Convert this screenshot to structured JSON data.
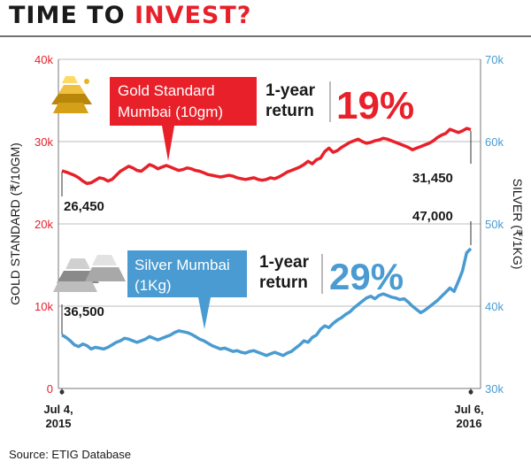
{
  "title": {
    "part1": "TIME TO ",
    "part2": "INVEST?"
  },
  "source": "Source: ETIG Database",
  "colors": {
    "gold": "#e8202a",
    "silver": "#4a9bd1",
    "text": "#1a1a1a",
    "axis": "#777777"
  },
  "icons": {
    "gold": "gold-bars-icon",
    "silver": "silver-bars-icon"
  },
  "chart_data": {
    "type": "line",
    "ylabel_left": "GOLD STANDARD (₹/10GM)",
    "ylabel_right": "SILVER (₹/1KG)",
    "ylim_left": [
      0,
      40000
    ],
    "ylim_right": [
      30000,
      70000
    ],
    "yticks_left": [
      "0",
      "10k",
      "20k",
      "30k",
      "40k"
    ],
    "yticks_right": [
      "30k",
      "40k",
      "50k",
      "60k",
      "70k"
    ],
    "xticks": [
      {
        "line1": "Jul 4,",
        "line2": "2015"
      },
      {
        "line1": "Jul 6,",
        "line2": "2016"
      }
    ],
    "series": [
      {
        "name": "Gold Standard Mumbai (10gm)",
        "axis": "left",
        "return_label": "1-year return",
        "return_value": "19%",
        "start_label": "26,450",
        "end_label": "31,450",
        "values": [
          26450,
          26300,
          26100,
          25900,
          25600,
          25200,
          24900,
          25000,
          25300,
          25600,
          25500,
          25200,
          25400,
          25900,
          26400,
          26700,
          27000,
          26800,
          26500,
          26400,
          26800,
          27200,
          27000,
          26700,
          26900,
          27100,
          26900,
          26700,
          26500,
          26600,
          26800,
          26700,
          26500,
          26400,
          26200,
          26000,
          25900,
          25800,
          25700,
          25800,
          25900,
          25800,
          25600,
          25500,
          25400,
          25500,
          25600,
          25400,
          25300,
          25400,
          25600,
          25500,
          25700,
          26000,
          26300,
          26500,
          26700,
          26900,
          27200,
          27600,
          27300,
          27800,
          28000,
          28800,
          29200,
          28700,
          28900,
          29300,
          29600,
          29900,
          30100,
          30300,
          30000,
          29800,
          29900,
          30100,
          30200,
          30400,
          30300,
          30100,
          29900,
          29700,
          29500,
          29300,
          29000,
          29200,
          29400,
          29600,
          29800,
          30100,
          30500,
          30800,
          31000,
          31500,
          31300,
          31100,
          31300,
          31600,
          31450
        ]
      },
      {
        "name": "Silver Mumbai (1Kg)",
        "axis": "right",
        "return_label": "1-year return",
        "return_value": "29%",
        "start_label": "36,500",
        "end_label": "47,000",
        "values": [
          36500,
          36200,
          35800,
          35300,
          35100,
          35400,
          35200,
          34800,
          35000,
          34900,
          34800,
          35000,
          35300,
          35600,
          35800,
          36100,
          36000,
          35800,
          35600,
          35800,
          36000,
          36300,
          36100,
          35900,
          36100,
          36300,
          36500,
          36800,
          37000,
          36900,
          36800,
          36600,
          36300,
          36000,
          35800,
          35500,
          35200,
          35000,
          34800,
          34900,
          34700,
          34500,
          34600,
          34400,
          34300,
          34500,
          34600,
          34400,
          34200,
          34000,
          34200,
          34400,
          34200,
          34000,
          34300,
          34500,
          34900,
          35300,
          35800,
          35600,
          36200,
          36500,
          37200,
          37600,
          37400,
          37900,
          38300,
          38600,
          39000,
          39300,
          39800,
          40200,
          40600,
          41000,
          41200,
          40900,
          41300,
          41500,
          41300,
          41100,
          41000,
          40800,
          40900,
          40500,
          40000,
          39600,
          39200,
          39500,
          39900,
          40300,
          40700,
          41200,
          41700,
          42200,
          41800,
          43000,
          44300,
          46500,
          47000
        ]
      }
    ]
  }
}
